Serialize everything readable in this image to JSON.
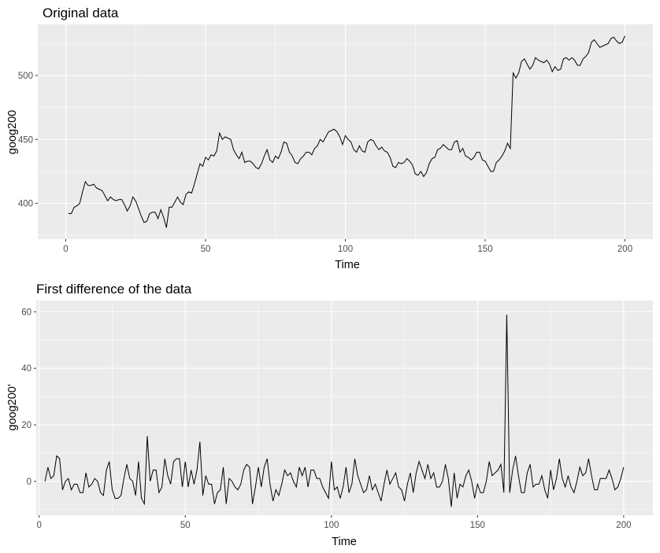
{
  "chart_data": [
    {
      "type": "line",
      "title": "Original data",
      "xlabel": "Time",
      "ylabel": "goog200",
      "xlim": [
        -10,
        210
      ],
      "ylim": [
        372,
        540
      ],
      "x_ticks": [
        0,
        50,
        100,
        150,
        200
      ],
      "y_ticks": [
        400,
        450,
        500
      ],
      "grid": true,
      "series": [
        {
          "x": [
            1,
            2,
            3,
            4,
            5,
            6,
            7,
            8,
            9,
            10,
            11,
            12,
            13,
            14,
            15,
            16,
            17,
            18,
            19,
            20,
            21,
            22,
            23,
            24,
            25,
            26,
            27,
            28,
            29,
            30,
            31,
            32,
            33,
            34,
            35,
            36,
            37,
            38,
            39,
            40,
            41,
            42,
            43,
            44,
            45,
            46,
            47,
            48,
            49,
            50,
            51,
            52,
            53,
            54,
            55,
            56,
            57,
            58,
            59,
            60,
            61,
            62,
            63,
            64,
            65,
            66,
            67,
            68,
            69,
            70,
            71,
            72,
            73,
            74,
            75,
            76,
            77,
            78,
            79,
            80,
            81,
            82,
            83,
            84,
            85,
            86,
            87,
            88,
            89,
            90,
            91,
            92,
            93,
            94,
            95,
            96,
            97,
            98,
            99,
            100,
            101,
            102,
            103,
            104,
            105,
            106,
            107,
            108,
            109,
            110,
            111,
            112,
            113,
            114,
            115,
            116,
            117,
            118,
            119,
            120,
            121,
            122,
            123,
            124,
            125,
            126,
            127,
            128,
            129,
            130,
            131,
            132,
            133,
            134,
            135,
            136,
            137,
            138,
            139,
            140,
            141,
            142,
            143,
            144,
            145,
            146,
            147,
            148,
            149,
            150,
            151,
            152,
            153,
            154,
            155,
            156,
            157,
            158,
            159,
            160,
            161,
            162,
            163,
            164,
            165,
            166,
            167,
            168,
            169,
            170,
            171,
            172,
            173,
            174,
            175,
            176,
            177,
            178,
            179,
            180,
            181,
            182,
            183,
            184,
            185,
            186,
            187,
            188,
            189,
            190,
            191,
            192,
            193,
            194,
            195,
            196,
            197,
            198,
            199,
            200
          ],
          "values": [
            392,
            392,
            397,
            398,
            400,
            409,
            417,
            414,
            414,
            415,
            412,
            411,
            410,
            406,
            402,
            405,
            403,
            402,
            403,
            403,
            399,
            394,
            398,
            405,
            402,
            396,
            390,
            385,
            386,
            392,
            393,
            393,
            388,
            395,
            389,
            381,
            397,
            397,
            401,
            405,
            401,
            399,
            407,
            409,
            408,
            415,
            423,
            431,
            429,
            436,
            434,
            438,
            437,
            441,
            455,
            450,
            452,
            451,
            450,
            442,
            438,
            435,
            440,
            432,
            433,
            433,
            431,
            428,
            427,
            431,
            437,
            442,
            434,
            432,
            437,
            435,
            440,
            448,
            447,
            440,
            437,
            432,
            431,
            435,
            437,
            440,
            440,
            438,
            443,
            445,
            450,
            448,
            452,
            456,
            457,
            458,
            456,
            452,
            446,
            453,
            450,
            448,
            442,
            440,
            445,
            441,
            440,
            448,
            450,
            449,
            445,
            442,
            444,
            441,
            440,
            436,
            429,
            428,
            432,
            431,
            432,
            435,
            433,
            430,
            423,
            422,
            425,
            421,
            424,
            431,
            435,
            436,
            442,
            443,
            446,
            444,
            442,
            442,
            448,
            449,
            440,
            443,
            437,
            436,
            434,
            436,
            440,
            440,
            434,
            433,
            429,
            425,
            425,
            432,
            434,
            437,
            441,
            447,
            443,
            502,
            498,
            502,
            511,
            513,
            509,
            505,
            508,
            514,
            512,
            511,
            510,
            512,
            509,
            503,
            507,
            504,
            505,
            513,
            514,
            512,
            514,
            512,
            508,
            508,
            513,
            515,
            518,
            526,
            528,
            525,
            522,
            523,
            524,
            525,
            529,
            530,
            527,
            525,
            526,
            531
          ]
        }
      ]
    },
    {
      "type": "line",
      "title": "First difference of the data",
      "xlabel": "Time",
      "ylabel": "goog200'",
      "xlim": [
        -1,
        210
      ],
      "ylim": [
        -12,
        64
      ],
      "x_ticks": [
        0,
        50,
        100,
        150,
        200
      ],
      "y_ticks": [
        0,
        20,
        40,
        60
      ],
      "grid": true,
      "series": [
        {
          "x": [
            2,
            3,
            4,
            5,
            6,
            7,
            8,
            9,
            10,
            11,
            12,
            13,
            14,
            15,
            16,
            17,
            18,
            19,
            20,
            21,
            22,
            23,
            24,
            25,
            26,
            27,
            28,
            29,
            30,
            31,
            32,
            33,
            34,
            35,
            36,
            37,
            38,
            39,
            40,
            41,
            42,
            43,
            44,
            45,
            46,
            47,
            48,
            49,
            50,
            51,
            52,
            53,
            54,
            55,
            56,
            57,
            58,
            59,
            60,
            61,
            62,
            63,
            64,
            65,
            66,
            67,
            68,
            69,
            70,
            71,
            72,
            73,
            74,
            75,
            76,
            77,
            78,
            79,
            80,
            81,
            82,
            83,
            84,
            85,
            86,
            87,
            88,
            89,
            90,
            91,
            92,
            93,
            94,
            95,
            96,
            97,
            98,
            99,
            100,
            101,
            102,
            103,
            104,
            105,
            106,
            107,
            108,
            109,
            110,
            111,
            112,
            113,
            114,
            115,
            116,
            117,
            118,
            119,
            120,
            121,
            122,
            123,
            124,
            125,
            126,
            127,
            128,
            129,
            130,
            131,
            132,
            133,
            134,
            135,
            136,
            137,
            138,
            139,
            140,
            141,
            142,
            143,
            144,
            145,
            146,
            147,
            148,
            149,
            150,
            151,
            152,
            153,
            154,
            155,
            156,
            157,
            158,
            159,
            160,
            161,
            162,
            163,
            164,
            165,
            166,
            167,
            168,
            169,
            170,
            171,
            172,
            173,
            174,
            175,
            176,
            177,
            178,
            179,
            180,
            181,
            182,
            183,
            184,
            185,
            186,
            187,
            188,
            189,
            190,
            191,
            192,
            193,
            194,
            195,
            196,
            197,
            198,
            199,
            200
          ],
          "values": [
            0,
            5,
            1,
            2,
            9,
            8,
            -3,
            0,
            1,
            -3,
            -1,
            -1,
            -4,
            -4,
            3,
            -2,
            -1,
            1,
            0,
            -4,
            -5,
            4,
            7,
            -3,
            -6,
            -6,
            -5,
            1,
            6,
            1,
            0,
            -5,
            7,
            -6,
            -8,
            16,
            0,
            4,
            4,
            -4,
            -2,
            8,
            2,
            -1,
            7,
            8,
            8,
            -2,
            7,
            -2,
            4,
            -1,
            4,
            14,
            -5,
            2,
            -1,
            -1,
            -8,
            -4,
            -3,
            5,
            -8,
            1,
            0,
            -2,
            -3,
            -1,
            4,
            6,
            5,
            -8,
            -2,
            5,
            -2,
            5,
            8,
            -1,
            -7,
            -3,
            -5,
            -1,
            4,
            2,
            3,
            0,
            -2,
            5,
            2,
            5,
            -2,
            4,
            4,
            1,
            1,
            -2,
            -4,
            -6,
            7,
            -3,
            -2,
            -6,
            -2,
            5,
            -4,
            -1,
            8,
            2,
            -1,
            -4,
            -3,
            2,
            -3,
            -1,
            -4,
            -7,
            -1,
            4,
            -1,
            1,
            3,
            -2,
            -3,
            -7,
            -1,
            3,
            -4,
            3,
            7,
            4,
            1,
            6,
            1,
            3,
            -2,
            -2,
            0,
            6,
            1,
            -9,
            3,
            -6,
            -1,
            -2,
            2,
            4,
            0,
            -6,
            -1,
            -4,
            -4,
            0,
            7,
            2,
            3,
            4,
            6,
            -4,
            59,
            -4,
            4,
            9,
            2,
            -4,
            -4,
            3,
            6,
            -2,
            -1,
            -1,
            2,
            -3,
            -6,
            4,
            -3,
            1,
            8,
            1,
            -2,
            2,
            -2,
            -4,
            0,
            5,
            2,
            3,
            8,
            2,
            -3,
            -3,
            1,
            1,
            1,
            4,
            1,
            -3,
            -2,
            1,
            5
          ]
        }
      ]
    }
  ]
}
